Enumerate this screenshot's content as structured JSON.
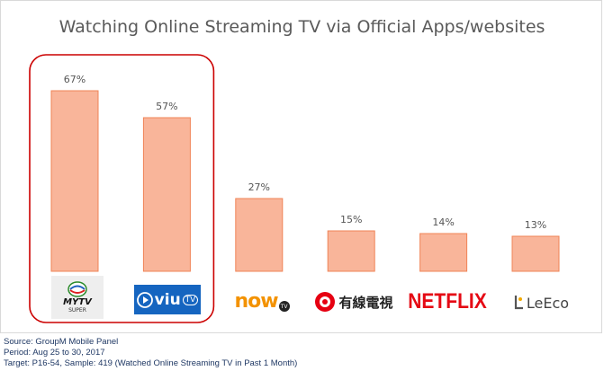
{
  "chart_data": {
    "type": "bar",
    "title": "Watching Online Streaming TV via Official Apps/websites",
    "categories": [
      "myTV SUPER",
      "ViuTV",
      "now TV",
      "有線電視",
      "NETFLIX",
      "LeEco"
    ],
    "values": [
      67,
      57,
      27,
      15,
      14,
      13
    ],
    "value_labels": [
      "67%",
      "57%",
      "27%",
      "15%",
      "14%",
      "13%"
    ],
    "ylim": [
      0,
      75
    ],
    "grid": false,
    "bar_fill": "#f9b59a",
    "bar_stroke": "#f08457",
    "highlight_color": "#cc0000",
    "highlighted_categories": [
      "myTV SUPER",
      "ViuTV"
    ]
  },
  "logos": {
    "mytv": {
      "text": "MYTV",
      "sub": "SUPER",
      "icon": "tvb-logo-icon"
    },
    "viu": {
      "text": "viu",
      "suffix": "TV",
      "icon": "viu-play-icon"
    },
    "now": {
      "text": "now",
      "badge": "TV"
    },
    "cable": {
      "text": "有線電視",
      "icon": "i-cable-logo-icon"
    },
    "netflix": {
      "text": "NETFLIX"
    },
    "leeco": {
      "text": "LeEco",
      "icon": "leeco-logo-icon"
    }
  },
  "footer": {
    "source": "Source: GroupM Mobile Panel",
    "period": "Period: Aug 25 to 30, 2017",
    "target": "Target: P16-54, Sample: 419 (Watched Online Streaming TV in Past 1 Month)"
  },
  "colors": {
    "title": "#5a5a5a",
    "footer": "#1f3864",
    "netflix": "#e50914",
    "now": "#f39200",
    "viu_bg": "#1565c0"
  }
}
